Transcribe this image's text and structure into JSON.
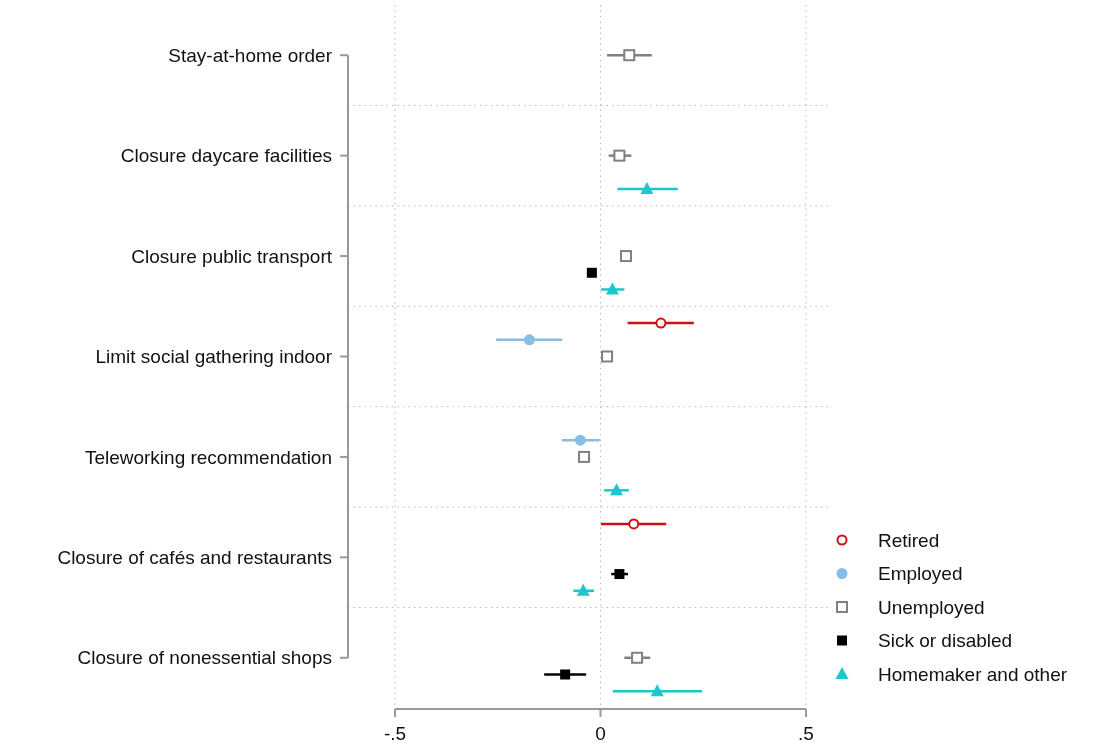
{
  "chart_data": {
    "type": "scatter",
    "orientation": "horizontal",
    "categories": [
      "Stay-at-home order",
      "Closure daycare facilities",
      "Closure public transport",
      "Limit social gathering indoor",
      "Teleworking recommendation",
      "Closure of cafés and restaurants",
      "Closure of nonessential shops"
    ],
    "xlim": [
      -0.5,
      0.5
    ],
    "xticks": [
      {
        "value": -0.5,
        "label": "-.5"
      },
      0,
      {
        "value": 0.5,
        "label": ".5"
      }
    ],
    "grid": true,
    "legend": "bottom right",
    "series": [
      {
        "name": "Retired",
        "color": "#cc1111",
        "marker": "circle",
        "values": [
          null,
          null,
          null,
          0.147,
          null,
          0.081,
          null
        ],
        "errors": [
          null,
          null,
          null,
          [
            0.066,
            0.227
          ],
          null,
          [
            0.001,
            0.16
          ],
          null
        ]
      },
      {
        "name": "Employed",
        "color": "#88bde6",
        "marker": "circle",
        "values": [
          null,
          null,
          null,
          -0.173,
          -0.049,
          null,
          null
        ],
        "errors": [
          null,
          null,
          null,
          [
            -0.254,
            -0.093
          ],
          [
            -0.094,
            -0.002
          ],
          null,
          null
        ]
      },
      {
        "name": "Unemployed",
        "color": "#808080",
        "marker": "square",
        "values": [
          0.07,
          0.046,
          0.062,
          0.016,
          -0.04,
          null,
          0.089
        ],
        "errors": [
          [
            0.016,
            0.125
          ],
          [
            0.02,
            0.075
          ],
          null,
          null,
          null,
          null,
          [
            0.058,
            0.121
          ]
        ]
      },
      {
        "name": "Sick or disabled",
        "color": "#000000",
        "marker": "square",
        "values": [
          null,
          null,
          -0.021,
          null,
          null,
          0.046,
          -0.086
        ],
        "errors": [
          null,
          null,
          null,
          null,
          null,
          [
            0.026,
            0.067
          ],
          [
            -0.137,
            -0.035
          ]
        ]
      },
      {
        "name": "Homemaker and other",
        "color": "#1cc7d0",
        "marker": "triangle",
        "values": [
          null,
          0.113,
          0.029,
          null,
          0.039,
          -0.042,
          0.138
        ],
        "errors": [
          null,
          [
            0.041,
            0.188
          ],
          [
            0.001,
            0.058
          ],
          null,
          [
            0.009,
            0.069
          ],
          [
            -0.066,
            -0.016
          ],
          [
            0.03,
            0.247
          ]
        ]
      }
    ]
  }
}
